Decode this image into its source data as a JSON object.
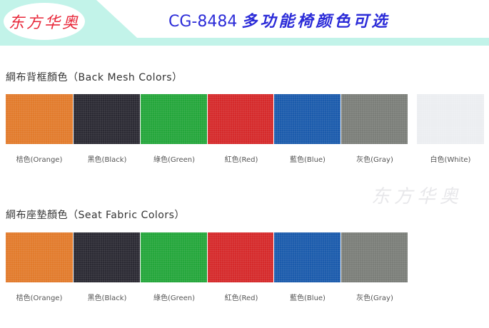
{
  "header": {
    "logo_text": "东方华奥",
    "title_model": "CG-8484",
    "title_text": "多功能椅颜色可选"
  },
  "back_mesh": {
    "heading": "綱布背框顏色（Back Mesh Colors）",
    "swatches": [
      {
        "label": "桔色(Orange)",
        "color": "#e27b2c"
      },
      {
        "label": "黑色(Black)",
        "color": "#2b2a33"
      },
      {
        "label": "綠色(Green)",
        "color": "#24a63b"
      },
      {
        "label": "紅色(Red)",
        "color": "#d52a2b"
      },
      {
        "label": "藍色(Blue)",
        "color": "#1b5bac"
      },
      {
        "label": "灰色(Gray)",
        "color": "#7b7e79"
      },
      {
        "label": "白色(White)",
        "color": "#eceef1"
      }
    ]
  },
  "seat_fabric": {
    "heading": "綱布座墊顏色（Seat Fabric Colors）",
    "swatches": [
      {
        "label": "桔色(Orange)",
        "color": "#e27b2c"
      },
      {
        "label": "黑色(Black)",
        "color": "#2b2a33"
      },
      {
        "label": "綠色(Green)",
        "color": "#24a63b"
      },
      {
        "label": "紅色(Red)",
        "color": "#d52a2b"
      },
      {
        "label": "藍色(Blue)",
        "color": "#1b5bac"
      },
      {
        "label": "灰色(Gray)",
        "color": "#7b7e79"
      }
    ]
  }
}
